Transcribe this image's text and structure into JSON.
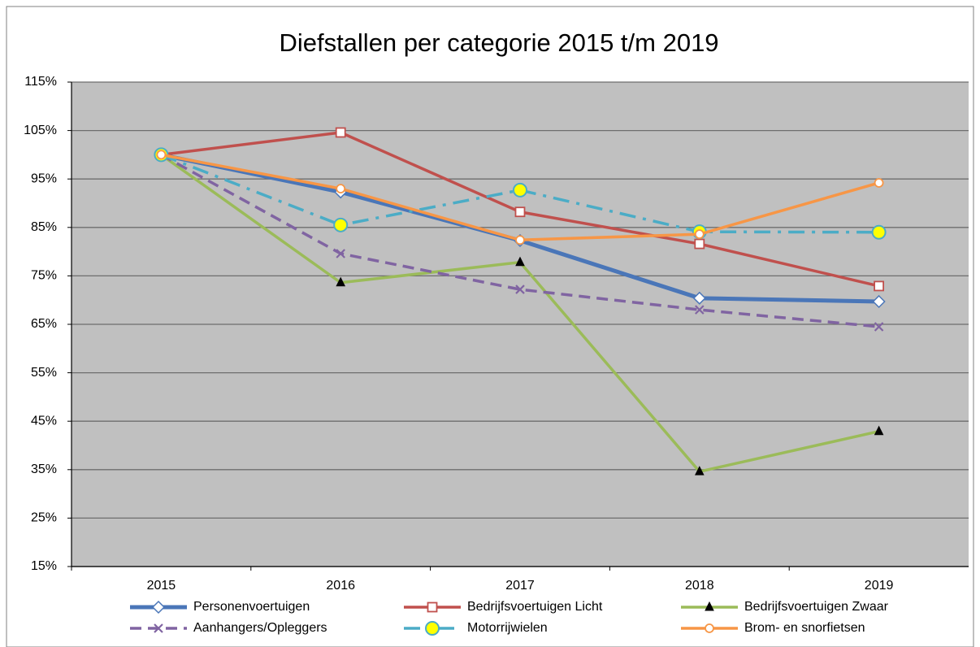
{
  "chart_data": {
    "type": "line",
    "title": "Diefstallen per categorie 2015 t/m 2019",
    "categories": [
      "2015",
      "2016",
      "2017",
      "2018",
      "2019"
    ],
    "ylim": [
      15,
      115
    ],
    "yticks": [
      {
        "value": 15,
        "label": "15%"
      },
      {
        "value": 25,
        "label": "25%"
      },
      {
        "value": 35,
        "label": "35%"
      },
      {
        "value": 45,
        "label": "45%"
      },
      {
        "value": 55,
        "label": "55%"
      },
      {
        "value": 65,
        "label": "65%"
      },
      {
        "value": 75,
        "label": "75%"
      },
      {
        "value": 85,
        "label": "85%"
      },
      {
        "value": 95,
        "label": "95%"
      },
      {
        "value": 105,
        "label": "105%"
      },
      {
        "value": 115,
        "label": "115%"
      }
    ],
    "grid": true,
    "legend": "bottom",
    "series": [
      {
        "name": "Personenvoertuigen",
        "color": "#4a76b8",
        "dash": "solid",
        "width": 5,
        "marker": "diamond",
        "marker_fill": "#ffffff",
        "values": [
          100,
          92.3,
          82.3,
          70.4,
          69.7
        ]
      },
      {
        "name": "Bedrijfsvoertuigen Licht",
        "color": "#c0504d",
        "dash": "solid",
        "width": 3.5,
        "marker": "square",
        "marker_fill": "#ffffff",
        "values": [
          100,
          104.6,
          88.2,
          81.6,
          72.9
        ]
      },
      {
        "name": "Bedrijfsvoertuigen Zwaar",
        "color": "#9bbb59",
        "dash": "solid",
        "width": 3.5,
        "marker": "triangle",
        "marker_fill": "#000000",
        "values": [
          100,
          73.6,
          77.8,
          34.6,
          42.9
        ]
      },
      {
        "name": "Aanhangers/Opleggers",
        "color": "#8064a2",
        "dash": "dash",
        "width": 3.5,
        "marker": "x",
        "marker_fill": "#8064a2",
        "values": [
          100,
          79.6,
          72.2,
          68.0,
          64.5
        ]
      },
      {
        "name": "Motorrijwielen",
        "color": "#4bacc6",
        "dash": "dashdot",
        "width": 3.5,
        "marker": "circle-large",
        "marker_fill": "#ffff00",
        "values": [
          100,
          85.5,
          92.7,
          84.1,
          84.0
        ]
      },
      {
        "name": "Brom- en snorfietsen",
        "color": "#f79646",
        "dash": "solid",
        "width": 3.5,
        "marker": "circle",
        "marker_fill": "#ffffff",
        "values": [
          100,
          93.0,
          82.4,
          83.6,
          94.2
        ]
      }
    ]
  }
}
